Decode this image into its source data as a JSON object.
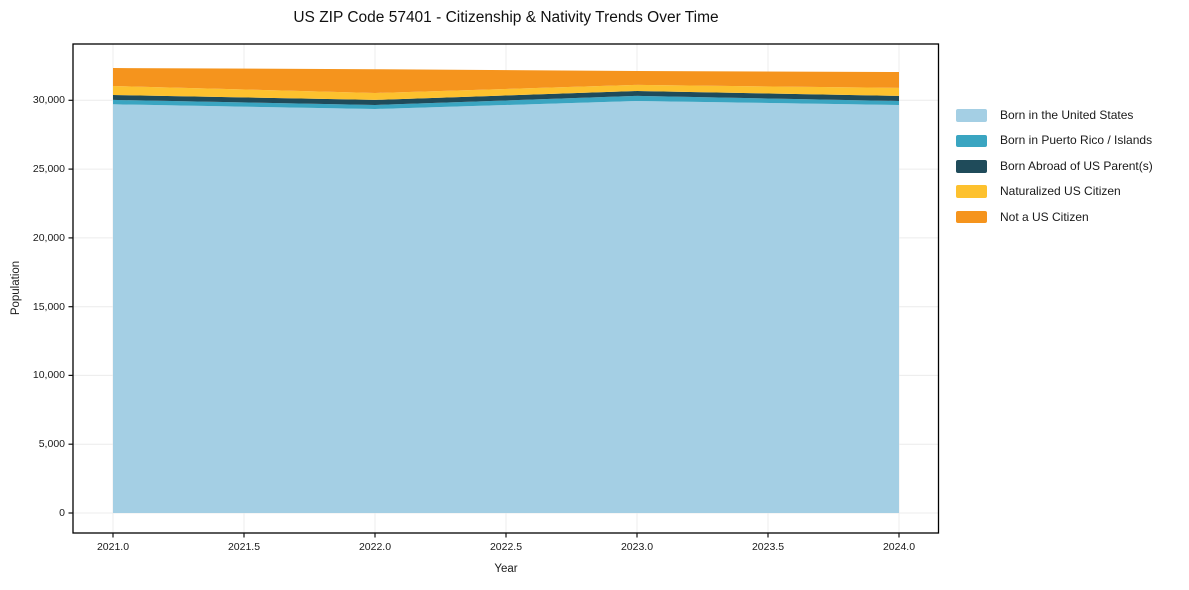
{
  "page": {
    "background_color": "#ffffff",
    "text_color": "#1a1a1a"
  },
  "chart_data": {
    "type": "area",
    "stacked": true,
    "title": "US ZIP Code 57401 - Citizenship & Nativity Trends Over Time",
    "xlabel": "Year",
    "ylabel": "Population",
    "x": [
      2021,
      2022,
      2023,
      2024
    ],
    "series": [
      {
        "name": "Born in the United States",
        "color": "#A4CFE4",
        "values": [
          29710,
          29370,
          29950,
          29660
        ]
      },
      {
        "name": "Born in Puerto Rico / Islands",
        "color": "#3AA5C1",
        "values": [
          320,
          290,
          370,
          290
        ]
      },
      {
        "name": "Born Abroad of US Parent(s)",
        "color": "#1F4B5A",
        "values": [
          360,
          370,
          360,
          370
        ]
      },
      {
        "name": "Naturalized US Citizen",
        "color": "#FDC12E",
        "values": [
          650,
          500,
          440,
          580
        ]
      },
      {
        "name": "Not a US Citizen",
        "color": "#F5941D",
        "values": [
          1310,
          1730,
          1010,
          1160
        ]
      }
    ],
    "totals": [
      32350,
      32260,
      32130,
      32060
    ],
    "x_tick_values": [
      2021.0,
      2021.5,
      2022.0,
      2022.5,
      2023.0,
      2023.5,
      2024.0
    ],
    "x_tick_labels": [
      "2021.0",
      "2021.5",
      "2022.0",
      "2022.5",
      "2023.0",
      "2023.5",
      "2024.0"
    ],
    "y_tick_values": [
      0,
      5000,
      10000,
      15000,
      20000,
      25000,
      30000
    ],
    "y_tick_labels": [
      "0",
      "5,000",
      "10,000",
      "15,000",
      "20,000",
      "25,000",
      "30,000"
    ],
    "xlim": [
      2020.85,
      2024.15
    ],
    "ylim": [
      -1450,
      34170
    ],
    "grid": true,
    "grid_color": "#ececec",
    "spine_color": "#000000",
    "legend_position": "right"
  }
}
